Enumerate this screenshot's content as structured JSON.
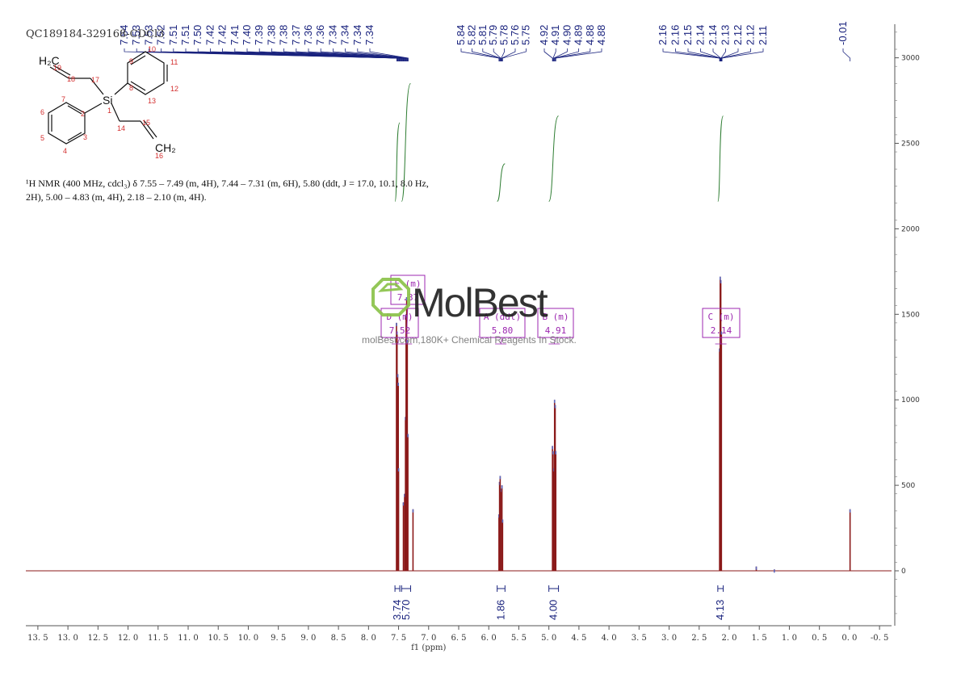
{
  "header": {
    "sample_id": "QC189184-329168-CDCl3"
  },
  "description": {
    "line1": "¹H NMR (400 MHz, cdcl₃) δ 7.55 – 7.49 (m, 4H), 7.44 – 7.31 (m, 6H), 5.80 (ddt, J = 17.0, 10.1, 8.0 Hz,",
    "line2": "2H), 5.00 – 4.83 (m, 4H), 2.18 – 2.10 (m, 4H)."
  },
  "structure": {
    "si": "Si",
    "h2c_top": "H₂C",
    "ch2_bottom": "CH₂",
    "numbers": [
      "1",
      "2",
      "3",
      "4",
      "5",
      "6",
      "7",
      "8",
      "9",
      "10",
      "11",
      "12",
      "13",
      "14",
      "15",
      "16",
      "17",
      "18",
      "19"
    ]
  },
  "watermark": {
    "brand": "MolBest",
    "sub": "molBest.com,180K+ Chemical Reagents In Stock."
  },
  "chart_data": {
    "type": "line",
    "title": "",
    "xlabel": "f1 (ppm)",
    "ylabel": "",
    "xlim": [
      13.7,
      -0.7
    ],
    "ylim": [
      -300,
      3200
    ],
    "x_reversed": true,
    "x_ticks": [
      "13.5",
      "13.0",
      "12.5",
      "12.0",
      "11.5",
      "11.0",
      "10.5",
      "10.0",
      "9.5",
      "9.0",
      "8.5",
      "8.0",
      "7.5",
      "7.0",
      "6.5",
      "6.0",
      "5.5",
      "5.0",
      "4.5",
      "4.0",
      "3.5",
      "3.0",
      "2.5",
      "2.0",
      "1.5",
      "1.0",
      "0.5",
      "0.0",
      "-0.5"
    ],
    "y_ticks": [
      "3000",
      "2500",
      "2000",
      "1500",
      "1000",
      "500",
      "0"
    ],
    "line_color": "#8b1a1a",
    "integral_color": "#2e7d32",
    "peak_label_color": "#1a237e",
    "multiplet_color": "#9c27b0",
    "peaks": [
      {
        "x": 7.535,
        "y": 1450
      },
      {
        "x": 7.525,
        "y": 1400
      },
      {
        "x": 7.515,
        "y": 1150
      },
      {
        "x": 7.505,
        "y": 1100
      },
      {
        "x": 7.5,
        "y": 600
      },
      {
        "x": 7.42,
        "y": 400
      },
      {
        "x": 7.4,
        "y": 450
      },
      {
        "x": 7.385,
        "y": 900
      },
      {
        "x": 7.375,
        "y": 1500
      },
      {
        "x": 7.365,
        "y": 1600
      },
      {
        "x": 7.355,
        "y": 1350
      },
      {
        "x": 7.345,
        "y": 800
      },
      {
        "x": 7.26,
        "y": 360
      },
      {
        "x": 5.83,
        "y": 330
      },
      {
        "x": 5.82,
        "y": 520
      },
      {
        "x": 5.81,
        "y": 555
      },
      {
        "x": 5.79,
        "y": 480
      },
      {
        "x": 5.78,
        "y": 500
      },
      {
        "x": 5.77,
        "y": 300
      },
      {
        "x": 4.94,
        "y": 730
      },
      {
        "x": 4.93,
        "y": 700
      },
      {
        "x": 4.915,
        "y": 600
      },
      {
        "x": 4.905,
        "y": 1000
      },
      {
        "x": 4.895,
        "y": 970
      },
      {
        "x": 4.885,
        "y": 700
      },
      {
        "x": 2.16,
        "y": 1300
      },
      {
        "x": 2.15,
        "y": 1720
      },
      {
        "x": 2.14,
        "y": 1700
      },
      {
        "x": 2.13,
        "y": 1400
      },
      {
        "x": 1.55,
        "y": 25
      },
      {
        "x": 1.25,
        "y": 8
      },
      {
        "x": -0.01,
        "y": 360
      }
    ],
    "peak_labels": {
      "group1": [
        "7.54",
        "7.53",
        "7.53",
        "7.52",
        "7.51",
        "7.51",
        "7.50",
        "7.42",
        "7.42",
        "7.41",
        "7.40",
        "7.39",
        "7.38",
        "7.38",
        "7.37",
        "7.36",
        "7.36",
        "7.34",
        "7.34",
        "7.34",
        "7.34"
      ],
      "group2": [
        "5.84",
        "5.82",
        "5.81",
        "5.79",
        "5.78",
        "5.76",
        "5.75"
      ],
      "group3": [
        "4.92",
        "4.91",
        "4.90",
        "4.89",
        "4.88",
        "4.88"
      ],
      "group4": [
        "2.16",
        "2.16",
        "2.15",
        "2.14",
        "2.14",
        "2.13",
        "2.12",
        "2.12",
        "2.11"
      ],
      "group5": [
        "-0.01"
      ]
    },
    "multiplets": [
      {
        "label": "E (m)",
        "shift": "7.37",
        "x": 7.37
      },
      {
        "label": "D (m)",
        "shift": "7.52",
        "x": 7.52
      },
      {
        "label": "A (ddt)",
        "shift": "5.80",
        "x": 5.8
      },
      {
        "label": "B (m)",
        "shift": "4.91",
        "x": 4.91
      },
      {
        "label": "C (m)",
        "shift": "2.14",
        "x": 2.14
      }
    ],
    "integrals": [
      {
        "from": 7.56,
        "to": 7.48,
        "value": "3.74",
        "curve_top": 2620
      },
      {
        "from": 7.45,
        "to": 7.3,
        "value": "5.70",
        "curve_top": 2850
      },
      {
        "from": 5.86,
        "to": 5.73,
        "value": "1.86",
        "curve_top": 2380
      },
      {
        "from": 5.0,
        "to": 4.84,
        "value": "4.00",
        "curve_top": 2660
      },
      {
        "from": 2.19,
        "to": 2.1,
        "value": "4.13",
        "curve_top": 2660
      }
    ]
  }
}
